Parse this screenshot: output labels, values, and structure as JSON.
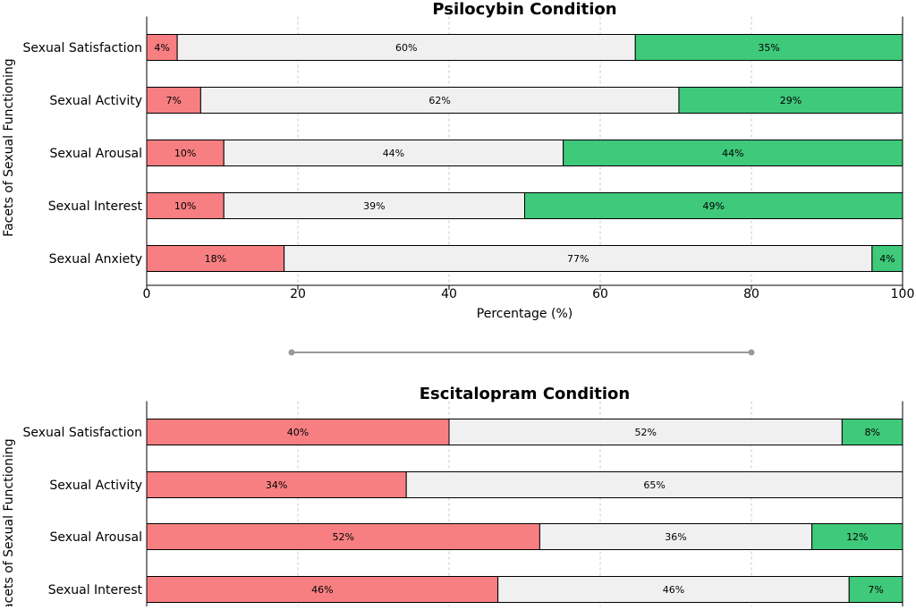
{
  "colors": {
    "decrease": "#f77f82",
    "no_change": "#f0f0f0",
    "increase": "#3fc97a",
    "outline": "#000000",
    "grid": "#c8c8c8",
    "divider": "#999999"
  },
  "chart_data": [
    {
      "type": "bar",
      "orientation": "horizontal",
      "stacked": true,
      "title": "Psilocybin Condition",
      "xlabel": "Percentage (%)",
      "ylabel": "Facets of Sexual Functioning",
      "xlim": [
        0,
        100
      ],
      "xticks": [
        "0",
        "20",
        "40",
        "60",
        "80",
        "100"
      ],
      "grid": "vertical dashed",
      "categories": [
        "Sexual Satisfaction",
        "Sexual Activity",
        "Sexual Arousal",
        "Sexual Interest",
        "Sexual Anxiety"
      ],
      "series": [
        {
          "values": [
            4,
            7,
            10,
            10,
            18
          ],
          "labels": [
            "4%",
            "7%",
            "10%",
            "10%",
            "18%"
          ],
          "color_key": "decrease"
        },
        {
          "values": [
            60,
            62,
            44,
            39,
            77
          ],
          "labels": [
            "60%",
            "62%",
            "44%",
            "39%",
            "77%"
          ],
          "color_key": "no_change"
        },
        {
          "values": [
            35,
            29,
            44,
            49,
            4
          ],
          "labels": [
            "35%",
            "29%",
            "44%",
            "49%",
            "4%"
          ],
          "color_key": "increase"
        }
      ]
    },
    {
      "type": "bar",
      "orientation": "horizontal",
      "stacked": true,
      "title": "Escitalopram Condition",
      "xlabel": "",
      "ylabel": "Facets of Sexual Functioning",
      "xlim": [
        0,
        100
      ],
      "grid": "vertical dashed",
      "categories": [
        "Sexual Satisfaction",
        "Sexual Activity",
        "Sexual Arousal",
        "Sexual Interest"
      ],
      "series": [
        {
          "values": [
            40,
            34,
            52,
            46
          ],
          "labels": [
            "40%",
            "34%",
            "52%",
            "46%"
          ],
          "color_key": "decrease"
        },
        {
          "values": [
            52,
            65,
            36,
            46
          ],
          "labels": [
            "52%",
            "65%",
            "36%",
            "46%"
          ],
          "color_key": "no_change"
        },
        {
          "values": [
            8,
            0,
            12,
            7
          ],
          "labels": [
            "8%",
            "",
            "12%",
            "7%"
          ],
          "color_key": "increase"
        }
      ]
    }
  ]
}
